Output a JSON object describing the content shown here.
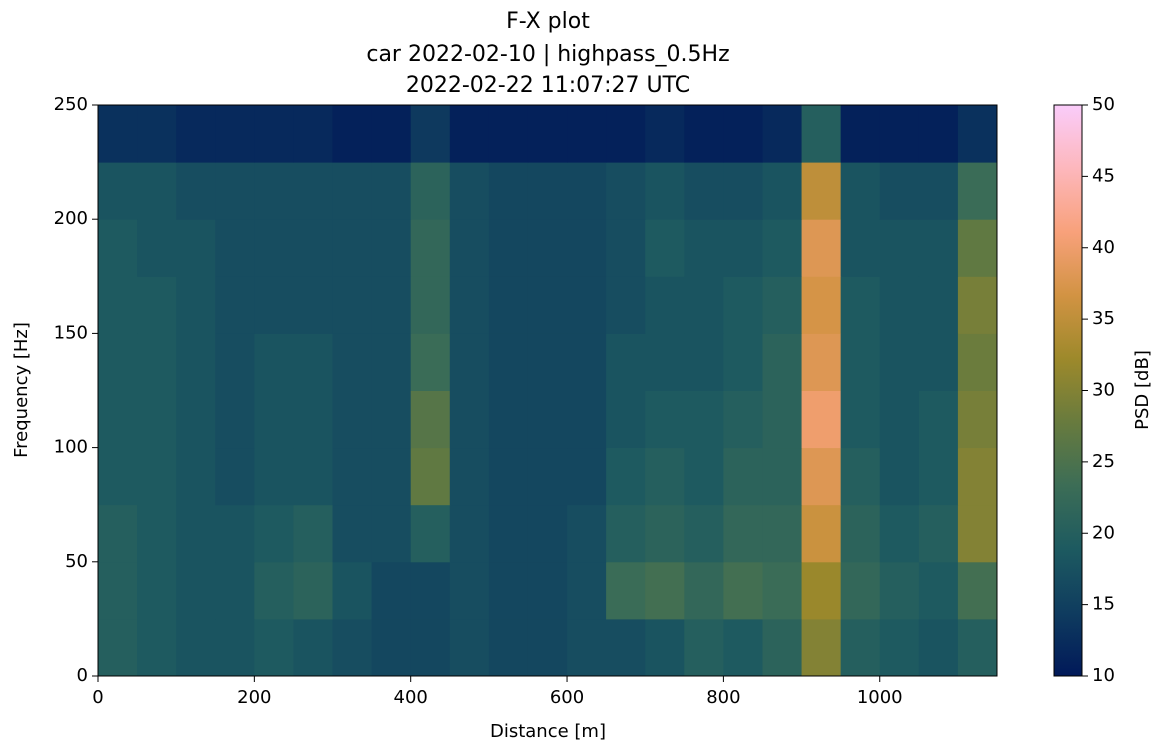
{
  "chart_data": {
    "type": "heatmap",
    "title": [
      "F-X plot",
      "car 2022-02-10 | highpass_0.5Hz",
      "2022-02-22 11:07:27 UTC"
    ],
    "x_label": "Distance [m]",
    "y_label": "Frequency [Hz]",
    "colorbar_label": "PSD [dB]",
    "xlim": [
      0,
      1150
    ],
    "ylim": [
      0,
      250
    ],
    "xticks": [
      0,
      200,
      400,
      600,
      800,
      1000
    ],
    "yticks": [
      0,
      50,
      100,
      150,
      200,
      250
    ],
    "clim": [
      10,
      50
    ],
    "cticks": [
      10,
      15,
      20,
      25,
      30,
      35,
      40,
      45,
      50
    ],
    "colormap": [
      "#011959",
      "#0f3c5f",
      "#1d5a60",
      "#3c6d56",
      "#687b3e",
      "#9d892b",
      "#d29343",
      "#f8a17b",
      "#fdb7bc",
      "#faccfa"
    ],
    "x_bins": [
      0,
      50,
      100,
      150,
      200,
      250,
      300,
      350,
      400,
      450,
      500,
      550,
      600,
      650,
      700,
      750,
      800,
      850,
      900,
      950,
      1000,
      1050,
      1100,
      1150
    ],
    "y_bins": [
      0,
      25,
      50,
      75,
      100,
      125,
      150,
      175,
      200,
      225,
      250
    ],
    "z": [
      [
        20,
        19,
        18,
        18,
        19,
        18,
        17,
        16,
        16,
        17,
        16,
        16,
        17,
        17,
        18,
        20,
        19,
        21,
        30,
        20,
        19,
        18,
        20
      ],
      [
        20,
        19,
        18,
        18,
        20,
        21,
        18,
        16,
        16,
        17,
        16,
        16,
        17,
        23,
        24,
        22,
        24,
        23,
        32,
        22,
        20,
        19,
        24
      ],
      [
        20,
        19,
        18,
        18,
        19,
        20,
        17,
        17,
        20,
        17,
        16,
        16,
        17,
        20,
        21,
        20,
        22,
        22,
        36,
        21,
        19,
        20,
        30
      ],
      [
        19,
        19,
        18,
        17,
        18,
        18,
        17,
        17,
        27,
        17,
        16,
        16,
        16,
        19,
        20,
        19,
        21,
        21,
        38,
        20,
        18,
        19,
        30
      ],
      [
        19,
        19,
        18,
        17,
        18,
        18,
        17,
        17,
        26,
        17,
        16,
        16,
        16,
        18,
        19,
        19,
        20,
        21,
        40,
        19,
        18,
        19,
        29
      ],
      [
        19,
        19,
        18,
        17,
        18,
        18,
        17,
        17,
        23,
        17,
        16,
        16,
        16,
        18,
        18,
        18,
        19,
        21,
        38,
        19,
        18,
        18,
        28
      ],
      [
        19,
        19,
        18,
        17,
        17,
        17,
        17,
        17,
        22,
        17,
        16,
        16,
        16,
        17,
        18,
        18,
        19,
        20,
        37,
        19,
        18,
        18,
        29
      ],
      [
        19,
        18,
        18,
        17,
        17,
        17,
        17,
        17,
        22,
        17,
        16,
        16,
        16,
        17,
        19,
        18,
        18,
        19,
        38,
        18,
        18,
        18,
        27
      ],
      [
        18,
        18,
        17,
        17,
        17,
        17,
        17,
        17,
        21,
        17,
        16,
        16,
        16,
        17,
        18,
        17,
        17,
        18,
        35,
        18,
        17,
        17,
        23
      ],
      [
        13,
        13,
        12,
        12,
        12,
        12,
        11,
        11,
        14,
        11,
        11,
        11,
        11,
        11,
        12,
        11,
        11,
        12,
        20,
        11,
        11,
        11,
        13
      ]
    ]
  }
}
